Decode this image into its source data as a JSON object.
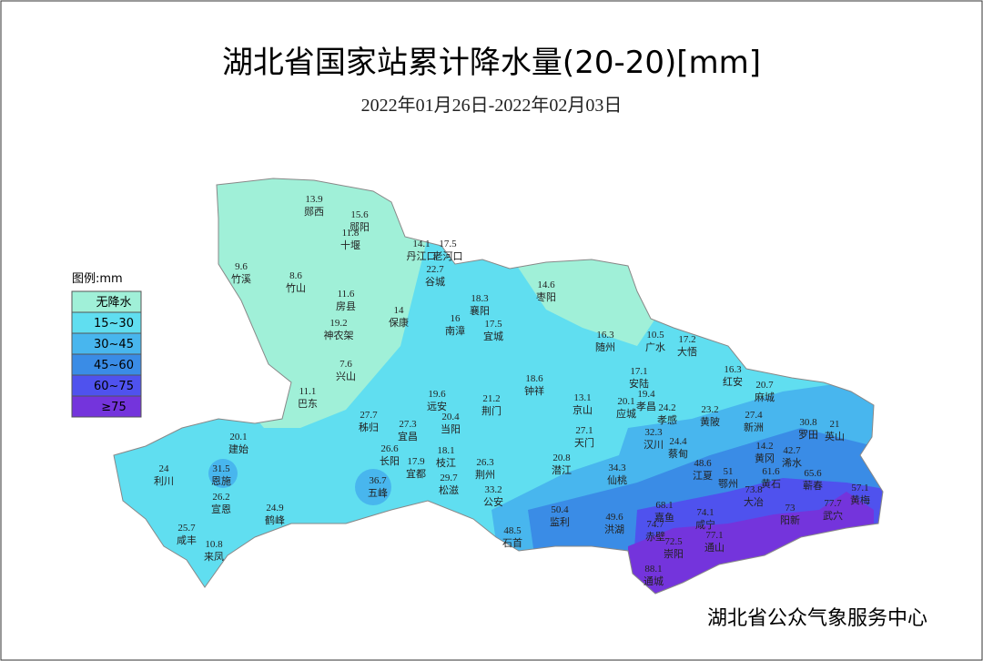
{
  "header": {
    "title": "湖北省国家站累计降水量(20-20)[mm]",
    "subtitle": "2022年01月26日-2022年02月03日"
  },
  "legend": {
    "title": "图例:mm",
    "items": [
      {
        "label": "无降水",
        "color": "#a0f0d8"
      },
      {
        "label": "15~30",
        "color": "#60def0"
      },
      {
        "label": "30~45",
        "color": "#48b6ee"
      },
      {
        "label": "45~60",
        "color": "#3a8ce6"
      },
      {
        "label": "60~75",
        "color": "#4f52ee"
      },
      {
        "label": "≥75",
        "color": "#7434dc"
      }
    ]
  },
  "stations": [
    {
      "value": 13.9,
      "name": "郧西"
    },
    {
      "value": 15.6,
      "name": "郧阳"
    },
    {
      "value": 11.8,
      "name": "十堰"
    },
    {
      "value": 14.1,
      "name": "丹江口"
    },
    {
      "value": 17.5,
      "name": "老河口"
    },
    {
      "value": 22.7,
      "name": "谷城"
    },
    {
      "value": 9.6,
      "name": "竹溪"
    },
    {
      "value": 8.6,
      "name": "竹山"
    },
    {
      "value": 11.6,
      "name": "房县"
    },
    {
      "value": 14,
      "name": "保康"
    },
    {
      "value": 19.2,
      "name": "神农架"
    },
    {
      "value": 18.3,
      "name": "襄阳"
    },
    {
      "value": 16,
      "name": "南漳"
    },
    {
      "value": 17.5,
      "name": "宜城"
    },
    {
      "value": 14.6,
      "name": "枣阳"
    },
    {
      "value": 16.3,
      "name": "随州"
    },
    {
      "value": 10.5,
      "name": "广水"
    },
    {
      "value": 17.2,
      "name": "大悟"
    },
    {
      "value": 7.6,
      "name": "兴山"
    },
    {
      "value": 11.1,
      "name": "巴东"
    },
    {
      "value": 19.6,
      "name": "远安"
    },
    {
      "value": 21.2,
      "name": "荆门"
    },
    {
      "value": 18.6,
      "name": "钟祥"
    },
    {
      "value": 13.1,
      "name": "京山"
    },
    {
      "value": 17.1,
      "name": "安陆"
    },
    {
      "value": 20.1,
      "name": "应城"
    },
    {
      "value": 19.4,
      "name": "孝昌"
    },
    {
      "value": 24.2,
      "name": "孝感"
    },
    {
      "value": 16.3,
      "name": "红安"
    },
    {
      "value": 20.7,
      "name": "麻城"
    },
    {
      "value": 23.2,
      "name": "黄陂"
    },
    {
      "value": 27.4,
      "name": "新洲"
    },
    {
      "value": 27.7,
      "name": "秭归"
    },
    {
      "value": 27.3,
      "name": "宜昌"
    },
    {
      "value": 20.4,
      "name": "当阳"
    },
    {
      "value": 27.1,
      "name": "天门"
    },
    {
      "value": 32.3,
      "name": "汉川"
    },
    {
      "value": 24.4,
      "name": "蔡甸"
    },
    {
      "value": 30.8,
      "name": "罗田"
    },
    {
      "value": 21,
      "name": "英山"
    },
    {
      "value": 20.1,
      "name": "建始"
    },
    {
      "value": 26.6,
      "name": "长阳"
    },
    {
      "value": 18.1,
      "name": "枝江"
    },
    {
      "value": 17.9,
      "name": "宜都"
    },
    {
      "value": 26.3,
      "name": "荆州"
    },
    {
      "value": 20.8,
      "name": "潜江"
    },
    {
      "value": 34.3,
      "name": "仙桃"
    },
    {
      "value": 14.2,
      "name": "黄冈"
    },
    {
      "value": 42.7,
      "name": "浠水"
    },
    {
      "value": 48.6,
      "name": "江夏"
    },
    {
      "value": 51,
      "name": "鄂州"
    },
    {
      "value": 24,
      "name": "利川"
    },
    {
      "value": 31.5,
      "name": "恩施"
    },
    {
      "value": 29.7,
      "name": "松滋"
    },
    {
      "value": 36.7,
      "name": "五峰"
    },
    {
      "value": 61.6,
      "name": "黄石"
    },
    {
      "value": 65.6,
      "name": "蕲春"
    },
    {
      "value": 73.8,
      "name": "大冶"
    },
    {
      "value": 57.1,
      "name": "黄梅"
    },
    {
      "value": 77.7,
      "name": "武穴"
    },
    {
      "value": 26.2,
      "name": "宣恩"
    },
    {
      "value": 33.2,
      "name": "公安"
    },
    {
      "value": 24.9,
      "name": "鹤峰"
    },
    {
      "value": 50.4,
      "name": "监利"
    },
    {
      "value": 49.6,
      "name": "洪湖"
    },
    {
      "value": 68.1,
      "name": "嘉鱼"
    },
    {
      "value": 74.1,
      "name": "咸宁"
    },
    {
      "value": 73,
      "name": "阳新"
    },
    {
      "value": 48.5,
      "name": "石首"
    },
    {
      "value": 74.7,
      "name": "赤壁"
    },
    {
      "value": 77.1,
      "name": "通山"
    },
    {
      "value": 72.5,
      "name": "崇阳"
    },
    {
      "value": 25.7,
      "name": "咸丰"
    },
    {
      "value": 10.8,
      "name": "来凤"
    },
    {
      "value": 88.1,
      "name": "通城"
    }
  ],
  "footer": "湖北省公众气象服务中心"
}
